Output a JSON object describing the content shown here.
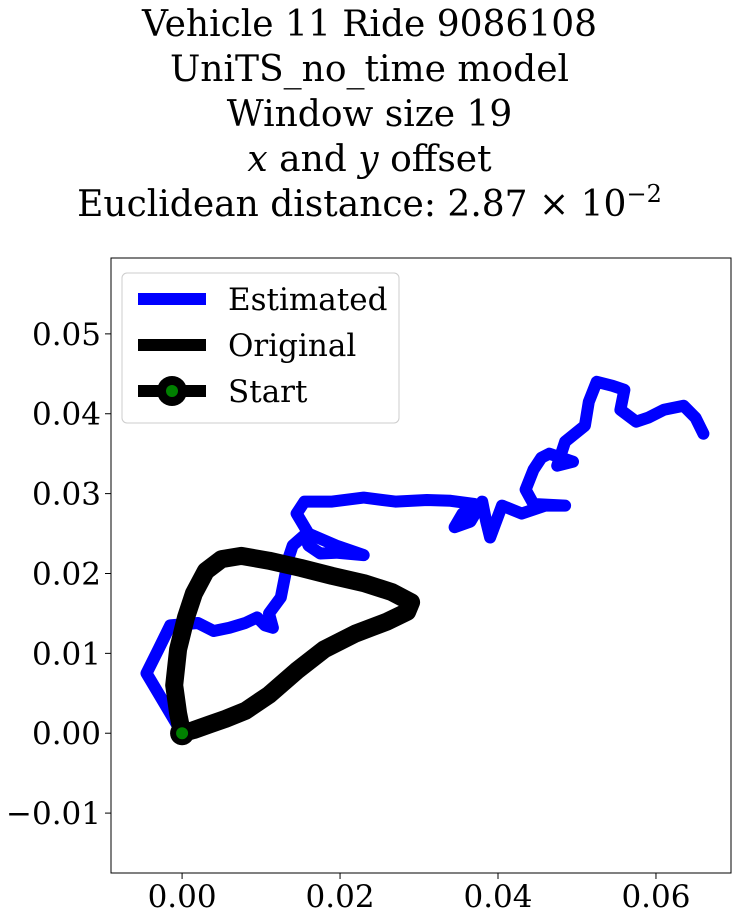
{
  "title": {
    "line1": "Vehicle 11 Ride 9086108",
    "line2": "UniTS_no_time model",
    "line3": "Window size 19",
    "line4_x": "x",
    "line4_and": " and ",
    "line4_y": "y",
    "line4_rest": " offset",
    "line5_prefix": "Euclidean distance: 2.87 × 10",
    "line5_exp": "−2"
  },
  "chart_data": {
    "type": "line",
    "xlim": [
      -0.009,
      0.0695
    ],
    "ylim": [
      -0.0175,
      0.0595
    ],
    "x_ticks": [
      {
        "value": 0.0,
        "label": "0.00"
      },
      {
        "value": 0.02,
        "label": "0.02"
      },
      {
        "value": 0.04,
        "label": "0.04"
      },
      {
        "value": 0.06,
        "label": "0.06"
      }
    ],
    "y_ticks": [
      {
        "value": -0.01,
        "label": "−0.01"
      },
      {
        "value": 0.0,
        "label": "0.00"
      },
      {
        "value": 0.01,
        "label": "0.01"
      },
      {
        "value": 0.02,
        "label": "0.02"
      },
      {
        "value": 0.03,
        "label": "0.03"
      },
      {
        "value": 0.04,
        "label": "0.04"
      },
      {
        "value": 0.05,
        "label": "0.05"
      }
    ],
    "grid": false,
    "legend_position": "top-left",
    "legend": [
      {
        "label": "Estimated",
        "color": "#0000ff",
        "marker": "line"
      },
      {
        "label": "Original",
        "color": "#000000",
        "marker": "line"
      },
      {
        "label": "Start",
        "color": "#000000",
        "marker": "circle",
        "marker_fill": "#008000"
      }
    ],
    "series": [
      {
        "name": "Estimated",
        "color": "#0000ff",
        "points": [
          [
            0.0,
            0.0
          ],
          [
            -0.003,
            0.005
          ],
          [
            -0.0045,
            0.0075
          ],
          [
            -0.003,
            0.0105
          ],
          [
            -0.0015,
            0.0135
          ],
          [
            0.002,
            0.0138
          ],
          [
            0.004,
            0.0128
          ],
          [
            0.006,
            0.0132
          ],
          [
            0.008,
            0.0138
          ],
          [
            0.0095,
            0.0145
          ],
          [
            0.0105,
            0.0135
          ],
          [
            0.0115,
            0.0132
          ],
          [
            0.011,
            0.015
          ],
          [
            0.0125,
            0.017
          ],
          [
            0.0135,
            0.022
          ],
          [
            0.014,
            0.0235
          ],
          [
            0.0155,
            0.0248
          ],
          [
            0.016,
            0.0235
          ],
          [
            0.0175,
            0.0225
          ],
          [
            0.0195,
            0.0226
          ],
          [
            0.023,
            0.0223
          ],
          [
            0.0195,
            0.0235
          ],
          [
            0.016,
            0.025
          ],
          [
            0.0145,
            0.0275
          ],
          [
            0.0155,
            0.029
          ],
          [
            0.019,
            0.029
          ],
          [
            0.023,
            0.0295
          ],
          [
            0.027,
            0.029
          ],
          [
            0.031,
            0.0292
          ],
          [
            0.034,
            0.0291
          ],
          [
            0.037,
            0.0287
          ],
          [
            0.0355,
            0.0275
          ],
          [
            0.0345,
            0.0258
          ],
          [
            0.0365,
            0.0265
          ],
          [
            0.038,
            0.029
          ],
          [
            0.0385,
            0.0265
          ],
          [
            0.039,
            0.0245
          ],
          [
            0.0405,
            0.0285
          ],
          [
            0.043,
            0.0275
          ],
          [
            0.046,
            0.0285
          ],
          [
            0.0485,
            0.0285
          ],
          [
            0.0445,
            0.0287
          ],
          [
            0.0435,
            0.0305
          ],
          [
            0.0445,
            0.033
          ],
          [
            0.0455,
            0.0345
          ],
          [
            0.0465,
            0.035
          ],
          [
            0.0495,
            0.034
          ],
          [
            0.0475,
            0.0335
          ],
          [
            0.0485,
            0.0365
          ],
          [
            0.051,
            0.0385
          ],
          [
            0.0515,
            0.0415
          ],
          [
            0.0525,
            0.044
          ],
          [
            0.0545,
            0.0435
          ],
          [
            0.056,
            0.043
          ],
          [
            0.0555,
            0.0405
          ],
          [
            0.0575,
            0.039
          ],
          [
            0.059,
            0.0395
          ],
          [
            0.061,
            0.0405
          ],
          [
            0.0635,
            0.041
          ],
          [
            0.065,
            0.0395
          ],
          [
            0.066,
            0.0375
          ]
        ]
      },
      {
        "name": "Original",
        "color": "#000000",
        "points": [
          [
            0.0,
            0.0
          ],
          [
            -0.0005,
            0.0025
          ],
          [
            -0.001,
            0.006
          ],
          [
            -0.0005,
            0.0105
          ],
          [
            0.0005,
            0.0145
          ],
          [
            0.0015,
            0.0175
          ],
          [
            0.003,
            0.0203
          ],
          [
            0.005,
            0.0218
          ],
          [
            0.0075,
            0.0222
          ],
          [
            0.011,
            0.0216
          ],
          [
            0.015,
            0.0207
          ],
          [
            0.019,
            0.0197
          ],
          [
            0.023,
            0.0188
          ],
          [
            0.0265,
            0.0177
          ],
          [
            0.029,
            0.0164
          ],
          [
            0.0285,
            0.0152
          ],
          [
            0.026,
            0.014
          ],
          [
            0.022,
            0.0125
          ],
          [
            0.018,
            0.0105
          ],
          [
            0.0145,
            0.0078
          ],
          [
            0.011,
            0.0048
          ],
          [
            0.008,
            0.0028
          ],
          [
            0.0055,
            0.0018
          ],
          [
            0.0035,
            0.0011
          ],
          [
            0.0015,
            0.0004
          ],
          [
            0.0,
            0.0
          ]
        ]
      }
    ],
    "start_point": [
      0.0,
      0.0
    ]
  }
}
